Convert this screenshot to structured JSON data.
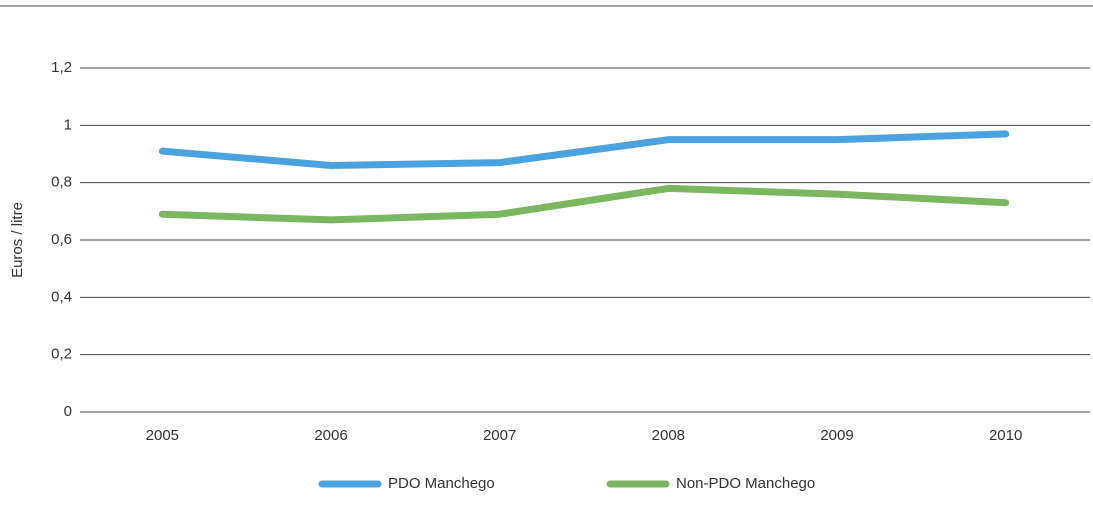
{
  "chart_data": {
    "type": "line",
    "y_label": "Euros / litre",
    "categories": [
      "2005",
      "2006",
      "2007",
      "2008",
      "2009",
      "2010"
    ],
    "series": [
      {
        "name": "PDO Manchego",
        "color": "#4aa3df",
        "values": [
          0.91,
          0.86,
          0.87,
          0.95,
          0.95,
          0.97
        ]
      },
      {
        "name": "Non-PDO Manchego",
        "color": "#7bb661",
        "values": [
          0.69,
          0.67,
          0.69,
          0.78,
          0.76,
          0.73
        ]
      }
    ],
    "ylim": [
      0,
      1.2
    ],
    "yticks": [
      0,
      {
        "value": 0.2,
        "label": "0,2"
      },
      {
        "value": 0.4,
        "label": "0,4"
      },
      {
        "value": 0.6,
        "label": "0,6"
      },
      {
        "value": 0.8,
        "label": "0,8"
      },
      1,
      {
        "value": 1.2,
        "label": "1,2"
      }
    ],
    "grid": true,
    "legend": "bottom"
  }
}
